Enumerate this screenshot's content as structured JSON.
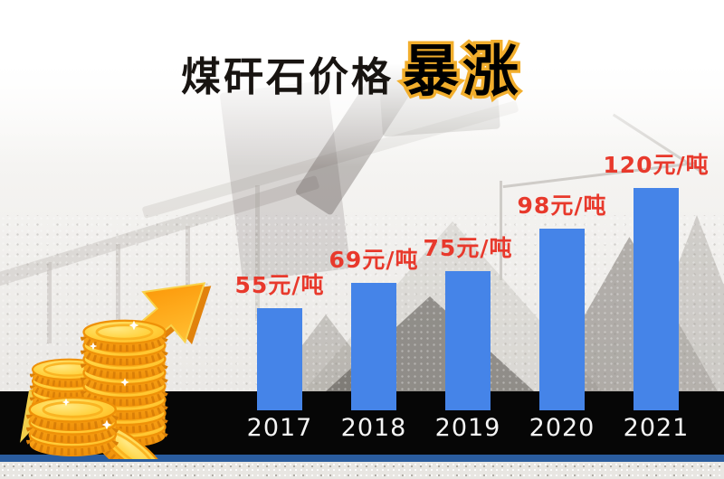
{
  "title": {
    "main": "煤矸石价格",
    "highlight": "暴涨"
  },
  "chart_data": {
    "type": "bar",
    "title": "煤矸石价格暴涨",
    "categories": [
      "2017",
      "2018",
      "2019",
      "2020",
      "2021"
    ],
    "values": [
      55,
      69,
      75,
      98,
      120
    ],
    "value_labels": [
      "55元/吨",
      "69元/吨",
      "75元/吨",
      "98元/吨",
      "120元/吨"
    ],
    "unit": "元/吨",
    "ylim": [
      0,
      130
    ],
    "grid": false,
    "legend": "none",
    "bar_color": "#4584e8",
    "value_label_color": "#e8392c",
    "category_label_color": "#f4f4f4",
    "baseline_color": "#060606"
  },
  "colors": {
    "accent_red": "#e8392c",
    "gold_outline": "#f2ae2c",
    "bar_blue": "#4584e8",
    "baseline_black": "#060606",
    "footer_blue": "#2a5c9e",
    "coin_gold": "#f9a51a"
  },
  "icons": {
    "coins": "gold-coin-stacks-icon",
    "arrow": "rising-trend-arrow-icon"
  }
}
